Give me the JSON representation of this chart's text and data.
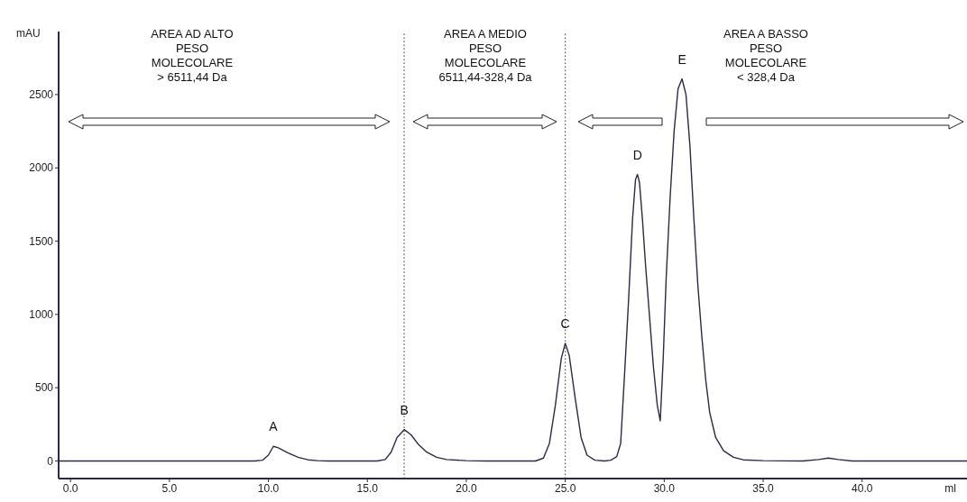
{
  "chart_data": {
    "type": "line",
    "xlabel": "ml",
    "ylabel": "mAU",
    "x": [
      -0.6,
      9.3,
      9.7,
      10.0,
      10.25,
      10.5,
      11.0,
      11.5,
      12.0,
      12.5,
      13.0,
      15.5,
      15.9,
      16.2,
      16.5,
      16.86,
      17.2,
      17.6,
      18.0,
      18.5,
      19.0,
      20.0,
      21.0,
      23.5,
      23.9,
      24.2,
      24.5,
      24.8,
      25.0,
      25.2,
      25.5,
      25.8,
      26.1,
      26.5,
      27.0,
      27.3,
      27.6,
      27.8,
      28.0,
      28.2,
      28.4,
      28.55,
      28.65,
      28.75,
      28.9,
      29.05,
      29.25,
      29.45,
      29.65,
      29.8,
      29.95,
      30.1,
      30.3,
      30.5,
      30.7,
      30.9,
      31.1,
      31.3,
      31.5,
      31.7,
      31.9,
      32.1,
      32.3,
      32.6,
      33.0,
      33.5,
      34.0,
      35.0,
      37.0,
      37.8,
      38.3,
      38.8,
      39.5,
      45.3
    ],
    "series": [
      {
        "color": "#2b2b48",
        "values": [
          0,
          0,
          5,
          40,
          100,
          90,
          55,
          25,
          8,
          2,
          0,
          0,
          10,
          60,
          160,
          214,
          180,
          110,
          60,
          25,
          10,
          2,
          0,
          0,
          20,
          120,
          380,
          700,
          803,
          720,
          430,
          160,
          40,
          5,
          0,
          5,
          30,
          120,
          600,
          1100,
          1650,
          1920,
          1955,
          1900,
          1650,
          1350,
          1000,
          650,
          380,
          274,
          700,
          1250,
          1800,
          2250,
          2540,
          2607,
          2500,
          2150,
          1650,
          1200,
          850,
          550,
          330,
          160,
          70,
          25,
          8,
          2,
          0,
          10,
          20,
          10,
          0,
          0
        ]
      }
    ],
    "xlim": [
      -0.6,
      45.3
    ],
    "ylim": [
      -120,
      2930
    ],
    "xticks": [
      {
        "value": 0,
        "label": "0.0"
      },
      {
        "value": 5,
        "label": "5.0"
      },
      {
        "value": 10,
        "label": "10.0"
      },
      {
        "value": 15,
        "label": "15.0"
      },
      {
        "value": 20,
        "label": "20.0"
      },
      {
        "value": 25,
        "label": "25.0"
      },
      {
        "value": 30,
        "label": "30.0"
      },
      {
        "value": 35,
        "label": "35.0"
      },
      {
        "value": 40,
        "label": "40.0"
      }
    ],
    "yticks": [
      0,
      500,
      1000,
      1500,
      2000,
      2500
    ],
    "ref_lines": [
      {
        "axis": "x",
        "value": 16.86,
        "line_style": "dotted",
        "color": "#555555"
      },
      {
        "axis": "x",
        "value": 25.0,
        "line_style": "dotted",
        "color": "#555555"
      }
    ],
    "annotations": [
      "AREA AD ALTO\nPESO\nMOLECOLARE\n> 6511,44 Da",
      "AREA A MEDIO\nPESO\nMOLECOLARE\n6511,44-328,4 Da",
      "AREA A BASSO\nPESO\nMOLECOLARE\n< 328,4 Da",
      {
        "text": "A",
        "x": 10.25,
        "y": 100
      },
      {
        "text": "B",
        "x": 16.86,
        "y": 214
      },
      {
        "text": "C",
        "x": 25.0,
        "y": 803
      },
      {
        "text": "D",
        "x": 28.65,
        "y": 1955
      },
      {
        "text": "E",
        "x": 30.9,
        "y": 2607
      }
    ],
    "grid": false,
    "legend": false,
    "marker": "none",
    "line_style": "solid"
  }
}
